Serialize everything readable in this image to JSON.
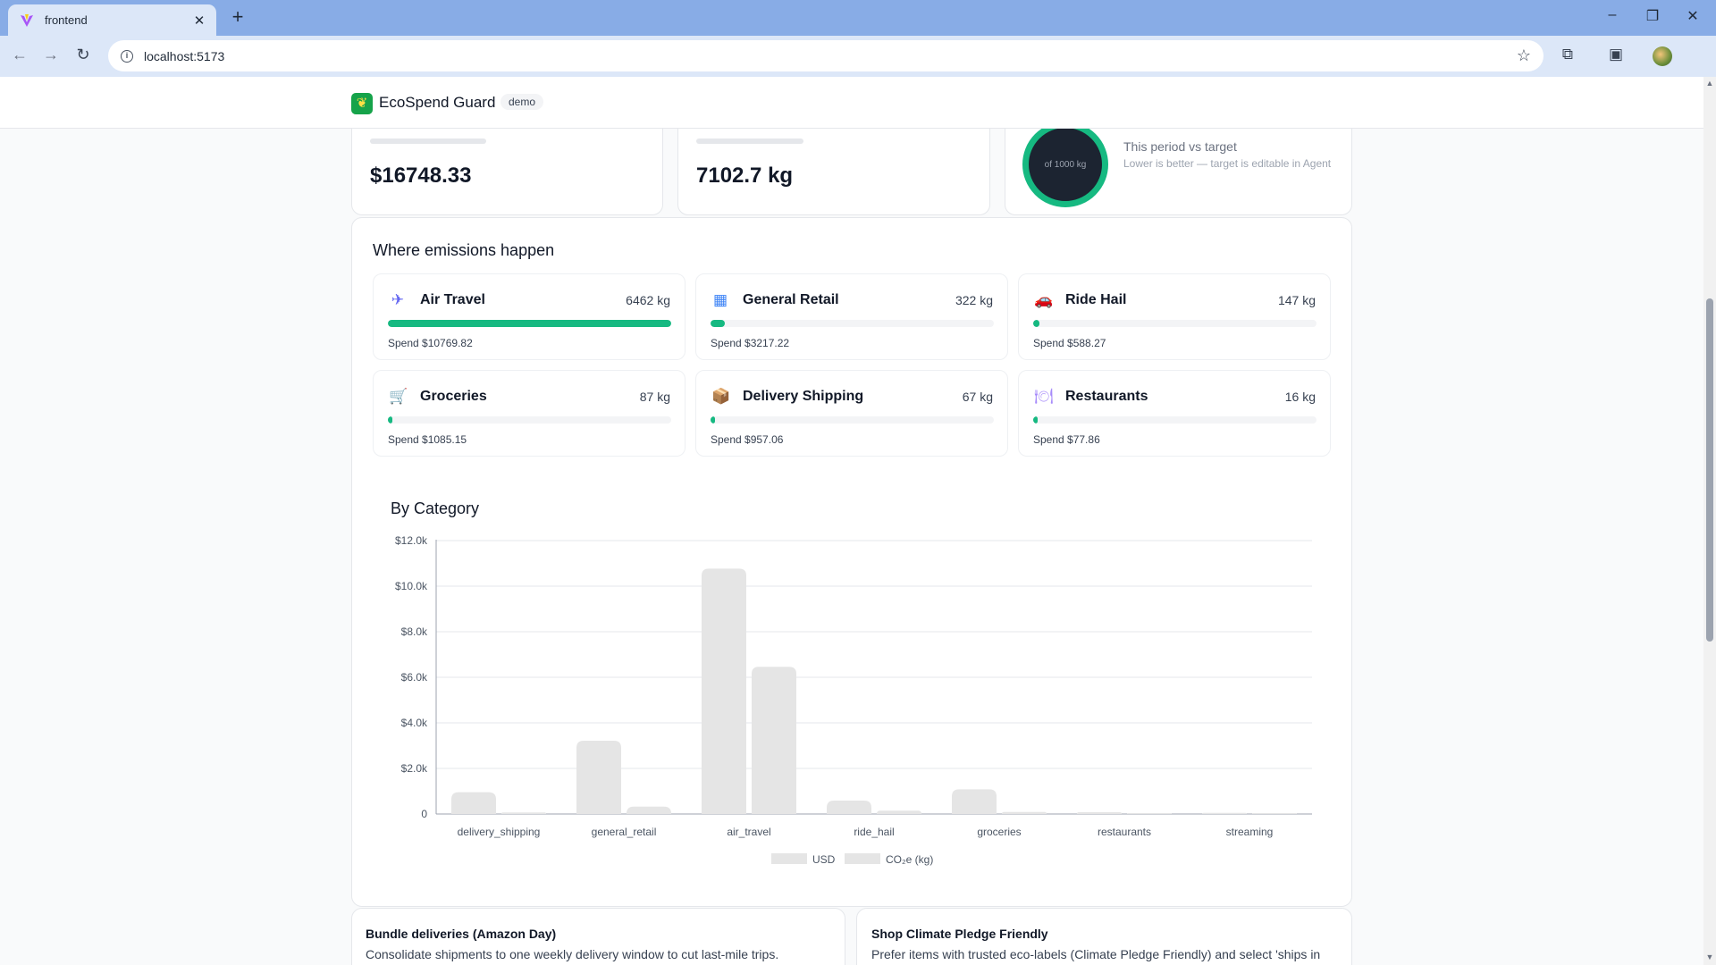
{
  "browser": {
    "tab_title": "frontend",
    "url": "localhost:5173",
    "new_tab_icon": "plus-icon",
    "colors": {
      "tabbar": "#88ace6",
      "toolbar": "#dce7f8"
    }
  },
  "app": {
    "brand_name": "EcoSpend Guard",
    "badge": "demo",
    "accent": "#16b981"
  },
  "stats": {
    "spend_value": "$16748.33",
    "emissions_value": "7102.7 kg",
    "ring_label": "of 1000 kg",
    "target_title": "This period vs target",
    "target_sub": "Lower is better — target is editable in Agent"
  },
  "emissions": {
    "title": "Where emissions happen",
    "categories": [
      {
        "name": "Air Travel",
        "kg": "6462 kg",
        "spend": "Spend $10769.82",
        "share": 1.0,
        "icon": "airplane-icon"
      },
      {
        "name": "General Retail",
        "kg": "322 kg",
        "spend": "Spend $3217.22",
        "share": 0.05,
        "icon": "building-icon"
      },
      {
        "name": "Ride Hail",
        "kg": "147 kg",
        "spend": "Spend $588.27",
        "share": 0.023,
        "icon": "car-icon"
      },
      {
        "name": "Groceries",
        "kg": "87 kg",
        "spend": "Spend $1085.15",
        "share": 0.013,
        "icon": "cart-icon"
      },
      {
        "name": "Delivery Shipping",
        "kg": "67 kg",
        "spend": "Spend $957.06",
        "share": 0.01,
        "icon": "package-icon"
      },
      {
        "name": "Restaurants",
        "kg": "16 kg",
        "spend": "Spend $77.86",
        "share": 0.0025,
        "icon": "dinner-icon"
      }
    ]
  },
  "chart_title": "By Category",
  "chart_data": {
    "type": "bar",
    "title": "By Category",
    "categories": [
      "delivery_shipping",
      "general_retail",
      "air_travel",
      "ride_hail",
      "groceries",
      "restaurants",
      "streaming"
    ],
    "series": [
      {
        "name": "USD",
        "values": [
          957.06,
          3217.22,
          10769.82,
          588.27,
          1085.15,
          77.86,
          50
        ]
      },
      {
        "name": "CO₂e (kg)",
        "values": [
          67,
          322,
          6462,
          147,
          87,
          16,
          5
        ]
      }
    ],
    "yticks": [
      "0",
      "$2.0k",
      "$4.0k",
      "$6.0k",
      "$8.0k",
      "$10.0k",
      "$12.0k"
    ],
    "ylim": [
      0,
      12000
    ],
    "grid": true,
    "legend": "bottom",
    "bar_color": "#e5e5e5"
  },
  "tips": [
    {
      "title": "Bundle deliveries (Amazon Day)",
      "body": "Consolidate shipments to one weekly delivery window to cut last-mile trips."
    },
    {
      "title": "Shop Climate Pledge Friendly",
      "body": "Prefer items with trusted eco-labels (Climate Pledge Friendly) and select 'ships in"
    }
  ]
}
